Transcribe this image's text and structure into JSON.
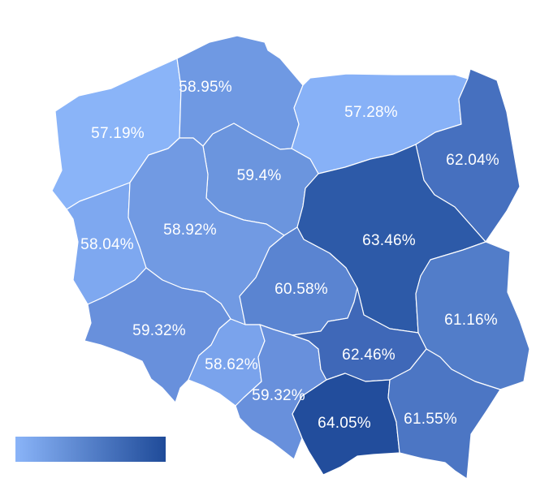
{
  "map": {
    "regions": [
      {
        "id": "zachodniopomorskie",
        "label": "57.19%",
        "value": 57.19,
        "color": "#8ab4f8"
      },
      {
        "id": "pomorskie",
        "label": "58.95%",
        "value": 58.95,
        "color": "#6f99e3"
      },
      {
        "id": "warminsko-mazurskie",
        "label": "57.28%",
        "value": 57.28,
        "color": "#87b1f7"
      },
      {
        "id": "podlaskie",
        "label": "62.04%",
        "value": 62.04,
        "color": "#4670bf"
      },
      {
        "id": "kujawsko-pomorskie",
        "label": "59.4%",
        "value": 59.4,
        "color": "#6b95de"
      },
      {
        "id": "lubuskie",
        "label": "58.04%",
        "value": 58.04,
        "color": "#7ea8f0"
      },
      {
        "id": "wielkopolskie",
        "label": "58.92%",
        "value": 58.92,
        "color": "#719ae3"
      },
      {
        "id": "mazowieckie",
        "label": "63.46%",
        "value": 63.46,
        "color": "#2d5aa8"
      },
      {
        "id": "lodzkie",
        "label": "60.58%",
        "value": 60.58,
        "color": "#5a84d1"
      },
      {
        "id": "lubelskie",
        "label": "61.16%",
        "value": 61.16,
        "color": "#527dc9"
      },
      {
        "id": "dolnoslaskie",
        "label": "59.32%",
        "value": 59.32,
        "color": "#6890dc"
      },
      {
        "id": "opolskie",
        "label": "58.62%",
        "value": 58.62,
        "color": "#7aa3ec"
      },
      {
        "id": "slaskie",
        "label": "59.32%",
        "value": 59.32,
        "color": "#6890dc"
      },
      {
        "id": "swietokrzyskie",
        "label": "62.46%",
        "value": 62.46,
        "color": "#3f68b8"
      },
      {
        "id": "malopolskie",
        "label": "64.05%",
        "value": 64.05,
        "color": "#224d9c"
      },
      {
        "id": "podkarpackie",
        "label": "61.55%",
        "value": 61.55,
        "color": "#4c76c4"
      }
    ]
  },
  "legend": {
    "color_min": "#8ab4f8",
    "color_max": "#1f4b99"
  }
}
